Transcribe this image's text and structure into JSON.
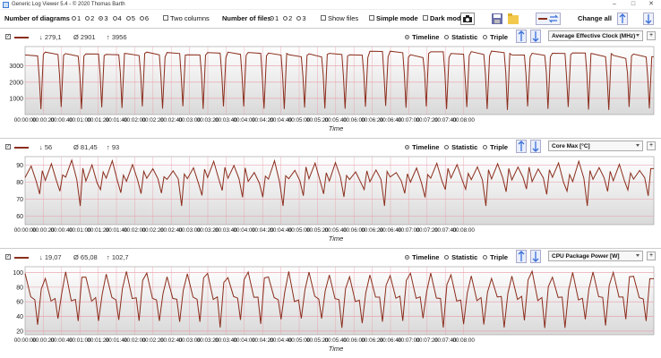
{
  "window": {
    "title": "Generic Log Viewer 5.4 - © 2020 Thomas Barth"
  },
  "toolbar": {
    "num_diagrams_label": "Number of diagrams",
    "diagram_options": [
      "1",
      "2",
      "3",
      "4",
      "5",
      "6"
    ],
    "diagram_selected": "3",
    "two_columns_label": "Two columns",
    "num_files_label": "Number of files",
    "file_options": [
      "1",
      "2",
      "3"
    ],
    "file_selected": "1",
    "show_files_label": "Show files",
    "simple_mode_label": "Simple mode",
    "dark_mode_label": "Dark mod",
    "change_all_label": "Change all"
  },
  "view_options": [
    "Timeline",
    "Statistic",
    "Triple"
  ],
  "x_ticks": [
    "00:00:00",
    "00:00:20",
    "00:00:40",
    "00:01:00",
    "00:01:20",
    "00:01:40",
    "00:02:00",
    "00:02:20",
    "00:02:40",
    "00:03:00",
    "00:03:20",
    "00:03:40",
    "00:04:00",
    "00:04:20",
    "00:04:40",
    "00:05:00",
    "00:05:20",
    "00:05:40",
    "00:06:00",
    "00:06:20",
    "00:06:40",
    "00:07:00",
    "00:07:20",
    "00:07:40",
    "00:08:00"
  ],
  "panels": [
    {
      "min": "↓ 279,1",
      "avg": "Ø 2901",
      "max": "↑ 3956",
      "sensor": "Average Effective Clock (MHz)",
      "xlabel": "Time",
      "yticks": [
        "1000",
        "2000",
        "3000"
      ],
      "selected_view": "Timeline"
    },
    {
      "min": "↓ 56",
      "avg": "Ø 81,45",
      "max": "↑ 93",
      "sensor": "Core Max [°C]",
      "xlabel": "Time",
      "yticks": [
        "60",
        "70",
        "80",
        "90"
      ],
      "selected_view": "Timeline"
    },
    {
      "min": "↓ 19,07",
      "avg": "Ø 65,08",
      "max": "↑ 102,7",
      "sensor": "CPU Package Power [W]",
      "xlabel": "Time",
      "yticks": [
        "20",
        "40",
        "60",
        "80",
        "100"
      ],
      "selected_view": "Timeline"
    }
  ],
  "colors": {
    "series": "#8b2e1d",
    "accent": "#3a6fd8"
  },
  "chart_data": [
    {
      "type": "line",
      "title": "",
      "xlabel": "Time",
      "ylabel": "",
      "ylim": [
        0,
        4200
      ],
      "x_range": [
        "00:00:00",
        "00:08:15"
      ],
      "series": [
        {
          "name": "Average Effective Clock (MHz)",
          "pattern": "cyclic",
          "cycles": 31,
          "high": 3956,
          "low": 279.1,
          "mean": 2901
        }
      ]
    },
    {
      "type": "line",
      "title": "",
      "xlabel": "Time",
      "ylabel": "",
      "ylim": [
        55,
        95
      ],
      "x_range": [
        "00:00:00",
        "00:08:15"
      ],
      "series": [
        {
          "name": "Core Max [°C]",
          "pattern": "cyclic",
          "cycles": 31,
          "high": 93,
          "low": 56,
          "mean": 81.45
        }
      ]
    },
    {
      "type": "line",
      "title": "",
      "xlabel": "Time",
      "ylabel": "",
      "ylim": [
        15,
        108
      ],
      "x_range": [
        "00:00:00",
        "00:08:15"
      ],
      "series": [
        {
          "name": "CPU Package Power [W]",
          "pattern": "cyclic",
          "cycles": 31,
          "high": 102.7,
          "low": 19.07,
          "mean": 65.08
        }
      ]
    }
  ]
}
